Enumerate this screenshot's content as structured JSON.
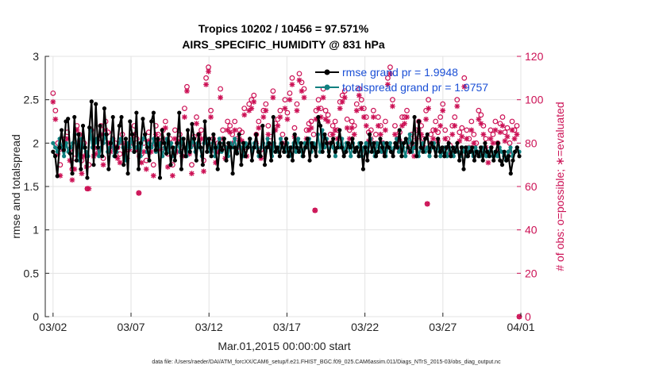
{
  "chart_data": {
    "type": "line",
    "title": "Tropics 10202 / 10456 = 97.571%",
    "subtitle": "AIRS_SPECIFIC_HUMIDITY @ 831 hPa",
    "xlabel": "Mar.01,2015 00:00:00 start",
    "ylabel": "rmse and totalspread",
    "ylabel_right": "# of obs: o=possible; ∗=evaluated",
    "x_range_days": [
      0.5,
      31
    ],
    "ylim": [
      0,
      3
    ],
    "ylim_right": [
      0,
      120
    ],
    "x_ticks": [
      {
        "day": 1,
        "label": "03/02"
      },
      {
        "day": 6,
        "label": "03/07"
      },
      {
        "day": 11,
        "label": "03/12"
      },
      {
        "day": 16,
        "label": "03/17"
      },
      {
        "day": 21,
        "label": "03/22"
      },
      {
        "day": 26,
        "label": "03/27"
      },
      {
        "day": 31,
        "label": "04/01"
      }
    ],
    "y_ticks": [
      "0",
      "0.5",
      "1",
      "1.5",
      "2",
      "2.5",
      "3"
    ],
    "y_ticks_right": [
      "0",
      "20",
      "40",
      "60",
      "80",
      "100",
      "120"
    ],
    "legend_position": "top-right",
    "colors": {
      "rmse": "#000000",
      "spread": "#118080",
      "obs": "#cc1155"
    },
    "series": [
      {
        "name": "rmse",
        "legend": "rmse grand pr = 1.9948",
        "values": [
          1.9,
          1.85,
          1.62,
          1.95,
          2.15,
          1.92,
          2.25,
          2.28,
          1.88,
          1.65,
          2.3,
          1.8,
          2.1,
          1.7,
          2.2,
          1.95,
          1.6,
          2.18,
          2.48,
          1.75,
          2.45,
          1.95,
          2.2,
          1.85,
          2.4,
          2.1,
          1.7,
          2.0,
          2.3,
          1.85,
          1.95,
          2.2,
          2.3,
          1.75,
          2.05,
          1.65,
          2.25,
          2.1,
          1.9,
          2.35,
          1.7,
          2.0,
          2.28,
          2.1,
          1.95,
          1.8,
          2.25,
          2.35,
          1.92,
          2.05,
          1.6,
          2.15,
          2.0,
          1.88,
          2.1,
          1.75,
          1.95,
          1.8,
          2.0,
          2.35,
          1.7,
          2.05,
          1.85,
          2.15,
          1.9,
          2.22,
          2.05,
          1.8,
          2.1,
          1.95,
          1.75,
          2.25,
          1.9,
          2.05,
          1.85,
          2.1,
          1.95,
          1.7,
          2.0,
          1.92,
          2.05,
          1.8,
          2.0,
          1.95,
          1.65,
          1.95,
          1.88,
          2.1,
          1.75,
          2.0,
          1.85,
          1.95,
          2.05,
          1.8,
          1.95,
          2.1,
          1.9,
          1.85,
          2.2,
          1.75,
          1.95,
          2.0,
          1.8,
          2.3,
          1.9,
          1.95,
          1.85,
          2.0,
          1.9,
          2.05,
          1.85,
          1.95,
          1.8,
          2.1,
          1.95,
          1.9,
          2.0,
          1.85,
          1.95,
          2.05,
          1.8,
          2.0,
          1.95,
          1.85,
          2.3,
          2.2,
          1.9,
          2.1,
          2.0,
          1.85,
          2.0,
          2.05,
          1.9,
          1.95,
          2.15,
          1.95,
          1.85,
          1.9,
          2.0,
          1.95,
          2.05,
          1.9,
          1.95,
          1.85,
          2.0,
          1.7,
          1.95,
          1.8,
          2.1,
          1.9,
          2.0,
          1.85,
          1.9,
          2.05,
          1.95,
          1.85,
          2.0,
          1.95,
          1.9,
          1.85,
          2.0,
          1.95,
          2.15,
          1.85,
          2.0,
          2.05,
          1.95,
          1.9,
          2.0,
          2.3,
          1.85,
          2.25,
          1.95,
          1.9,
          2.05,
          2.1,
          1.9,
          2.0,
          1.95,
          1.85,
          2.05,
          1.9,
          1.95,
          1.85,
          1.95,
          2.0,
          1.85,
          1.95,
          1.9,
          2.0,
          1.8,
          1.95,
          1.7,
          1.95,
          1.85,
          1.9,
          1.95,
          1.8,
          1.9,
          1.85,
          1.95,
          1.8,
          2.0,
          1.9,
          1.85,
          1.95,
          1.8,
          1.9,
          2.0,
          1.8,
          1.75,
          1.9,
          1.8,
          1.85,
          1.65,
          1.8,
          1.9,
          1.95,
          1.85
        ]
      },
      {
        "name": "totalspread",
        "legend": "totalspread grand pr = 1.9757",
        "values": [
          2.0,
          1.95,
          1.9,
          2.05,
          1.95,
          1.85,
          2.0,
          1.9,
          1.95,
          2.0,
          2.1,
          1.95,
          1.8,
          2.05,
          1.95,
          1.9,
          1.85,
          2.15,
          1.95,
          2.0,
          2.05,
          1.85,
          1.95,
          2.0,
          2.1,
          1.9,
          1.95,
          2.05,
          1.85,
          1.9,
          2.0,
          2.05,
          1.95,
          1.8,
          2.0,
          1.95,
          2.05,
          1.9,
          1.95,
          2.0,
          1.85,
          2.05,
          2.1,
          1.9,
          2.0,
          1.95,
          2.05,
          1.9,
          1.95,
          2.0,
          1.85,
          1.95,
          2.05,
          1.9,
          2.0,
          1.85,
          1.95,
          2.0,
          1.9,
          2.05,
          1.95,
          1.85,
          2.0,
          1.95,
          2.05,
          1.9,
          2.0,
          1.95,
          1.85,
          2.0,
          2.05,
          1.95,
          1.9,
          2.0,
          1.85,
          1.95,
          2.05,
          1.9,
          2.0,
          1.95,
          1.85,
          2.0,
          1.95,
          2.05,
          1.9,
          2.0,
          1.95,
          1.85,
          2.0,
          1.95,
          2.05,
          1.9,
          2.0,
          1.95,
          1.85,
          1.95,
          2.0,
          1.9,
          2.05,
          1.95,
          1.85,
          2.0,
          1.95,
          1.9,
          2.05,
          1.95,
          1.9,
          2.0,
          1.85,
          1.95,
          2.0,
          1.9,
          2.05,
          1.95,
          1.85,
          2.0,
          1.95,
          2.05,
          1.9,
          2.0,
          1.95,
          2.1,
          1.9,
          2.15,
          1.95,
          2.05,
          1.9,
          2.0,
          1.95,
          1.85,
          2.0,
          1.95,
          2.05,
          1.9,
          2.0,
          1.95,
          1.85,
          2.0,
          1.9,
          1.95,
          2.0,
          1.85,
          1.95,
          2.0,
          1.9,
          2.05,
          1.95,
          1.85,
          2.0,
          1.95,
          1.9,
          2.0,
          1.85,
          1.95,
          2.0,
          1.9,
          1.95,
          2.05,
          1.9,
          2.0,
          1.95,
          1.85,
          2.0,
          2.1,
          1.9,
          1.95,
          2.0,
          1.85,
          1.95,
          2.0,
          1.9,
          1.95,
          1.85,
          1.95,
          2.0,
          1.9,
          1.95,
          1.85,
          1.9,
          1.95,
          1.85,
          1.95,
          1.9,
          1.85,
          1.95,
          1.9,
          1.85,
          1.95,
          1.9,
          1.85,
          1.95,
          1.9,
          1.85,
          1.95,
          1.9,
          1.85,
          1.95,
          1.9,
          1.85,
          1.9,
          1.95,
          1.85,
          1.9,
          1.85,
          1.95,
          1.9,
          1.85,
          1.8,
          1.9,
          1.95,
          1.85,
          1.9,
          1.95,
          1.9
        ]
      },
      {
        "name": "obs_possible",
        "marker": "o",
        "values": [
          103,
          95,
          80,
          70,
          78,
          82,
          85,
          77,
          68,
          73,
          88,
          84,
          72,
          80,
          75,
          70,
          86,
          78,
          79,
          82,
          88,
          73,
          90,
          85,
          80,
          82,
          80,
          78,
          75,
          84,
          79,
          77,
          80,
          83,
          88,
          82,
          79,
          75,
          80,
          72,
          85,
          79,
          70,
          88,
          84,
          80,
          86,
          90,
          75,
          82,
          70,
          86,
          80,
          84,
          78,
          96,
          106,
          79,
          70,
          83,
          92,
          84,
          86,
          72,
          110,
          115,
          95,
          82,
          76,
          80,
          105,
          86,
          78,
          90,
          88,
          84,
          90,
          82,
          86,
          85,
          96,
          78,
          98,
          100,
          102,
          84,
          90,
          77,
          95,
          98,
          88,
          83,
          104,
          89,
          91,
          95,
          84,
          100,
          94,
          103,
          110,
          87,
          98,
          112,
          108,
          105,
          86,
          89,
          90,
          84,
          95,
          100,
          96,
          105,
          95,
          93,
          84,
          88,
          90,
          86,
          99,
          102,
          104,
          91,
          86,
          90,
          88,
          98,
          105,
          100,
          96,
          92,
          85,
          86,
          95,
          84,
          92,
          88,
          80,
          90,
          110,
          115,
          100,
          88,
          82,
          85,
          92,
          92,
          95,
          80,
          84,
          78,
          86,
          90,
          88,
          82,
          95,
          100,
          84,
          86,
          90,
          85,
          92,
          98,
          86,
          82,
          79,
          88,
          92,
          100,
          85,
          87,
          110,
          86,
          82,
          90,
          84,
          80,
          95,
          93,
          88,
          82,
          75,
          86,
          84,
          90,
          80,
          89,
          92,
          85,
          87,
          80,
          90,
          86,
          88,
          0
        ],
        "step": 0.15
      },
      {
        "name": "obs_evaluated",
        "marker": "*",
        "values": [
          99,
          91,
          75,
          65,
          77,
          79,
          82,
          72,
          63,
          68,
          86,
          81,
          66,
          74,
          69,
          59,
          82,
          74,
          75,
          77,
          84,
          70,
          86,
          80,
          76,
          78,
          77,
          73,
          71,
          80,
          76,
          73,
          77,
          80,
          84,
          77,
          74,
          71,
          76,
          68,
          81,
          76,
          65,
          84,
          81,
          77,
          82,
          87,
          69,
          78,
          65,
          82,
          76,
          81,
          74,
          92,
          104,
          75,
          66,
          79,
          89,
          80,
          82,
          67,
          107,
          113,
          92,
          78,
          71,
          76,
          101,
          82,
          73,
          86,
          85,
          80,
          86,
          78,
          82,
          81,
          93,
          74,
          95,
          96,
          99,
          80,
          87,
          73,
          92,
          95,
          84,
          79,
          101,
          86,
          88,
          92,
          80,
          96,
          91,
          100,
          107,
          83,
          95,
          109,
          104,
          101,
          82,
          86,
          87,
          79,
          91,
          96,
          92,
          101,
          91,
          90,
          80,
          84,
          86,
          82,
          96,
          99,
          101,
          87,
          82,
          87,
          84,
          95,
          102,
          96,
          92,
          88,
          81,
          82,
          92,
          80,
          88,
          84,
          76,
          86,
          107,
          112,
          97,
          84,
          78,
          81,
          88,
          89,
          92,
          76,
          80,
          74,
          82,
          86,
          84,
          78,
          91,
          96,
          80,
          82,
          86,
          81,
          88,
          95,
          82,
          78,
          75,
          84,
          88,
          97,
          81,
          83,
          106,
          82,
          78,
          86,
          80,
          76,
          91,
          89,
          84,
          78,
          71,
          82,
          80,
          86,
          76,
          85,
          88,
          81,
          83,
          76,
          86,
          82,
          84,
          0
        ],
        "step": 0.15
      }
    ],
    "outliers_evaluated": [
      {
        "day": 17.8,
        "value": 49
      },
      {
        "day": 25.0,
        "value": 52
      },
      {
        "day": 3.2,
        "value": 59
      },
      {
        "day": 6.5,
        "value": 57
      }
    ]
  },
  "legend_items": {
    "rmse": "rmse grand pr = 1.9948",
    "spread": "totalspread grand pr = 1.9757"
  },
  "footer": "data file: /Users/raeder/DAI/ATM_forcXX/CAM6_setup/f.e21.FHIST_BGC.f09_025.CAM6assim.011/Diags_NTrS_2015-03/obs_diag_output.nc"
}
